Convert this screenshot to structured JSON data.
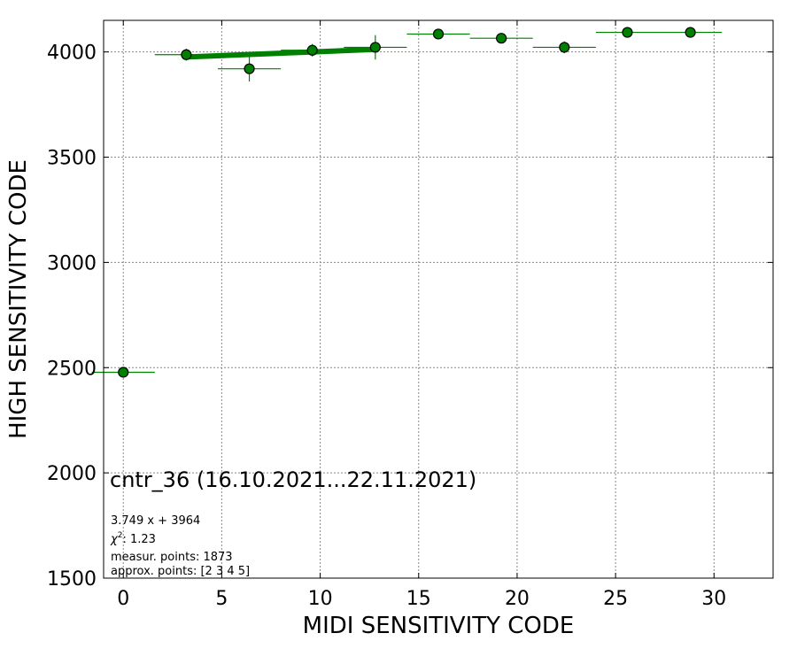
{
  "chart_data": {
    "type": "scatter",
    "xlabel": "MIDI SENSITIVITY CODE",
    "ylabel": "HIGH SENSITIVITY CODE",
    "xlim": [
      -1,
      33
    ],
    "ylim": [
      1500,
      4150
    ],
    "xticks": [
      0,
      5,
      10,
      15,
      20,
      25,
      30
    ],
    "yticks": [
      1500,
      2000,
      2500,
      3000,
      3500,
      4000
    ],
    "grid": true,
    "colors": {
      "marker": "#008000",
      "errorbar": "#008000",
      "fit": "#008000",
      "edge": "#000000",
      "grid": "#888888"
    },
    "points": [
      {
        "x": 0.0,
        "y": 2478,
        "xerr": 1.6,
        "yerr": 0
      },
      {
        "x": 3.2,
        "y": 3987,
        "xerr": 1.6,
        "yerr": 28
      },
      {
        "x": 6.4,
        "y": 3920,
        "xerr": 1.6,
        "yerr": 60
      },
      {
        "x": 9.6,
        "y": 4008,
        "xerr": 1.6,
        "yerr": 30
      },
      {
        "x": 12.8,
        "y": 4022,
        "xerr": 1.6,
        "yerr": 58
      },
      {
        "x": 16.0,
        "y": 4085,
        "xerr": 1.6,
        "yerr": 0
      },
      {
        "x": 19.2,
        "y": 4065,
        "xerr": 1.6,
        "yerr": 0
      },
      {
        "x": 22.4,
        "y": 4022,
        "xerr": 1.6,
        "yerr": 28
      },
      {
        "x": 25.6,
        "y": 4093,
        "xerr": 1.6,
        "yerr": 0
      },
      {
        "x": 28.8,
        "y": 4093,
        "xerr": 1.6,
        "yerr": 0
      }
    ],
    "fit": {
      "slope": 3.749,
      "intercept": 3964,
      "x_range": [
        3.2,
        12.8
      ]
    },
    "annotation": {
      "title": "cntr_36 (16.10.2021...22.11.2021)",
      "equation": "3.749 x + 3964",
      "chi2_label": "χ",
      "chi2_exp": "2",
      "chi2_value": ": 1.23",
      "measur": "measur. points: 1873",
      "approx": "approx. points: [2 3 4 5]"
    }
  }
}
